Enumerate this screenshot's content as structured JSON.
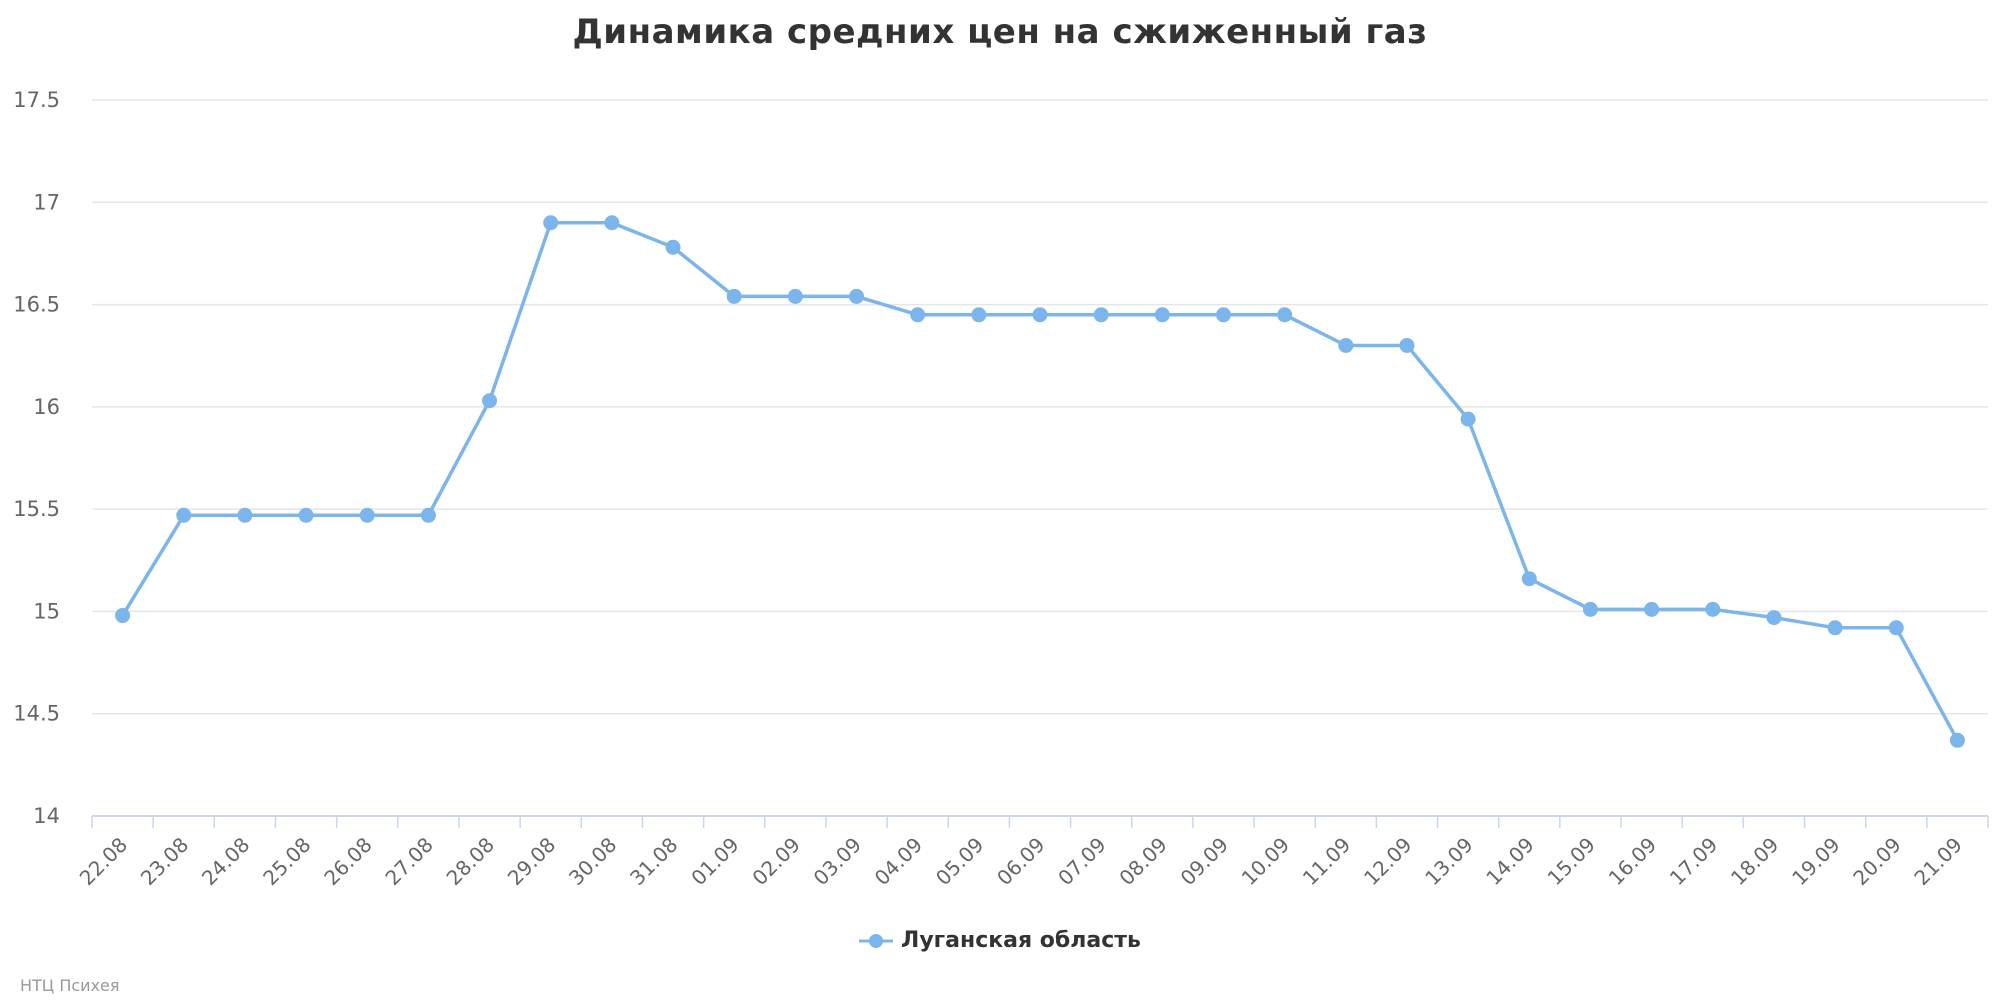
{
  "chart_data": {
    "type": "line",
    "title": "Динамика средних цен на сжиженный газ",
    "categories": [
      "22.08",
      "23.08",
      "24.08",
      "25.08",
      "26.08",
      "27.08",
      "28.08",
      "29.08",
      "30.08",
      "31.08",
      "01.09",
      "02.09",
      "03.09",
      "04.09",
      "05.09",
      "06.09",
      "07.09",
      "08.09",
      "09.09",
      "10.09",
      "11.09",
      "12.09",
      "13.09",
      "14.09",
      "15.09",
      "16.09",
      "17.09",
      "18.09",
      "19.09",
      "20.09",
      "21.09"
    ],
    "series": [
      {
        "name": "Луганская область",
        "color": "#7cb5ec",
        "values": [
          14.98,
          15.47,
          15.47,
          15.47,
          15.47,
          15.47,
          16.03,
          16.9,
          16.9,
          16.78,
          16.54,
          16.54,
          16.54,
          16.45,
          16.45,
          16.45,
          16.45,
          16.45,
          16.45,
          16.45,
          16.3,
          16.3,
          15.94,
          15.16,
          15.01,
          15.01,
          15.01,
          14.97,
          14.92,
          14.92,
          14.37
        ]
      }
    ],
    "yticks": [
      "14",
      "14.5",
      "15",
      "15.5",
      "16",
      "16.5",
      "17",
      "17.5"
    ],
    "ylim": [
      14,
      17.5
    ],
    "xlabel": "",
    "ylabel": "",
    "grid": true,
    "legend_position": "bottom-center"
  },
  "credits": "НТЦ Психея"
}
